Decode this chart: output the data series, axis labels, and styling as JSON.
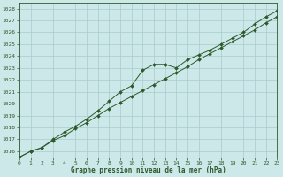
{
  "title": "Graphe pression niveau de la mer (hPa)",
  "background_color": "#cce8e8",
  "line_color": "#2d5a2d",
  "x_values": [
    0,
    1,
    2,
    3,
    4,
    5,
    6,
    7,
    8,
    9,
    10,
    11,
    12,
    13,
    14,
    15,
    16,
    17,
    18,
    19,
    20,
    21,
    22,
    23
  ],
  "line1": [
    1015.5,
    1016.0,
    1016.3,
    1017.0,
    1017.6,
    1018.1,
    1018.7,
    1019.4,
    1020.2,
    1021.0,
    1021.5,
    1022.8,
    1023.3,
    1023.3,
    1023.0,
    1023.7,
    1024.1,
    1024.5,
    1025.0,
    1025.5,
    1026.0,
    1026.7,
    1027.3,
    1027.8
  ],
  "line2": [
    1015.5,
    1016.0,
    1016.3,
    1016.9,
    1017.3,
    1017.9,
    1018.4,
    1019.0,
    1019.6,
    1020.1,
    1020.6,
    1021.1,
    1021.6,
    1022.1,
    1022.6,
    1023.1,
    1023.7,
    1024.2,
    1024.7,
    1025.2,
    1025.7,
    1026.2,
    1026.8,
    1027.3
  ],
  "ylim": [
    1015.5,
    1028.5
  ],
  "yticks": [
    1016,
    1017,
    1018,
    1019,
    1020,
    1021,
    1022,
    1023,
    1024,
    1025,
    1026,
    1027,
    1028
  ],
  "xlim": [
    0,
    23
  ],
  "xticks": [
    0,
    1,
    2,
    3,
    4,
    5,
    6,
    7,
    8,
    9,
    10,
    11,
    12,
    13,
    14,
    15,
    16,
    17,
    18,
    19,
    20,
    21,
    22,
    23
  ]
}
